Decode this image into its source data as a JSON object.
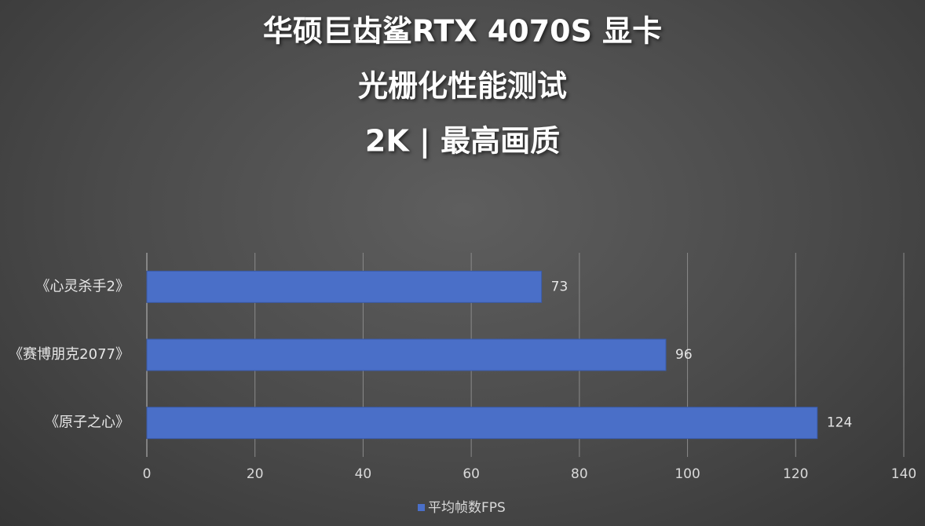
{
  "chart_data": {
    "type": "bar",
    "orientation": "horizontal",
    "title": [
      "华硕巨齿鲨RTX 4070S 显卡",
      "光栅化性能测试",
      "2K | 最高画质"
    ],
    "categories": [
      "《心灵杀手2》",
      "《赛博朋克2077》",
      "《原子之心》"
    ],
    "series": [
      {
        "name": "平均帧数FPS",
        "color": "#4a6fc8",
        "values": [
          73,
          96,
          124
        ]
      }
    ],
    "xlim": [
      0,
      140
    ],
    "xticks": [
      0,
      20,
      40,
      60,
      80,
      100,
      120,
      140
    ],
    "grid": true,
    "legend": "bottom",
    "data_labels": true
  }
}
